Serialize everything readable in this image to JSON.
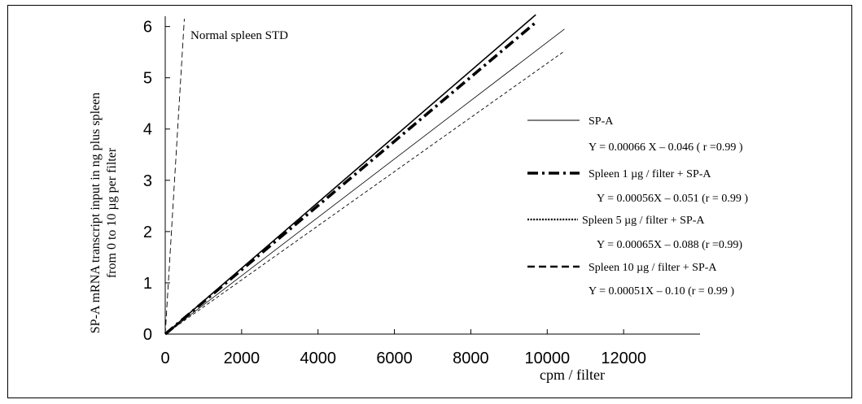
{
  "chart_data": {
    "type": "line",
    "xlabel": "cpm / filter",
    "ylabel_lines": [
      "SP-A mRNA transcript input in ng plus spleen",
      "from 0 to 10 µg per filter"
    ],
    "xlim": [
      0,
      14000
    ],
    "ylim": [
      0,
      6.2
    ],
    "x_ticks": [
      "0",
      "2000",
      "4000",
      "6000",
      "8000",
      "10000",
      "12000"
    ],
    "y_ticks": [
      "0",
      "1",
      "2",
      "3",
      "4",
      "5",
      "6"
    ],
    "annotation": "Normal spleen STD",
    "series": [
      {
        "name": "SP-A",
        "equation": "Y = 0.00066 X – 0.046  ( r =0.99 )",
        "style": "solid",
        "x": [
          0,
          9700
        ],
        "y": [
          0,
          6.23
        ]
      },
      {
        "name": "Spleen 1 µg / filter + SP-A",
        "equation": "Y = 0.00056X – 0.051  (r = 0.99 )",
        "style": "dashdot",
        "x": [
          0,
          9700
        ],
        "y": [
          0,
          6.08
        ]
      },
      {
        "name": "Spleen 5 µg / filter + SP-A",
        "equation": "Y = 0.00065X – 0.088  (r =0.99)",
        "style": "dotted",
        "x": [
          0,
          10450
        ],
        "y": [
          0,
          5.95
        ]
      },
      {
        "name": "Spleen 10 µg / filter  + SP-A",
        "equation": "Y = 0.00051X – 0.10  (r = 0.99 )",
        "style": "dashed",
        "x": [
          0,
          10450
        ],
        "y": [
          0,
          5.52
        ]
      },
      {
        "style": "dashed-thin",
        "x": [
          0,
          500
        ],
        "y": [
          0,
          6.15
        ]
      }
    ]
  }
}
